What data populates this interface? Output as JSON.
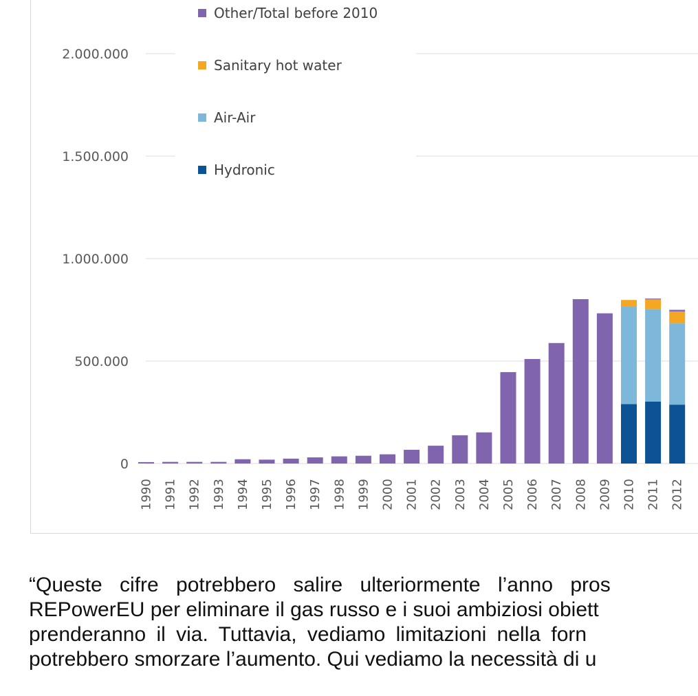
{
  "chart_data": {
    "type": "bar",
    "stacked": true,
    "categories": [
      "1990",
      "1991",
      "1992",
      "1993",
      "1994",
      "1995",
      "1996",
      "1997",
      "1998",
      "1999",
      "2000",
      "2001",
      "2002",
      "2003",
      "2004",
      "2005",
      "2006",
      "2007",
      "2008",
      "2009",
      "2010",
      "2011",
      "2012"
    ],
    "series": [
      {
        "name": "Hydronic",
        "color": "#0b5394",
        "values": [
          0,
          0,
          0,
          0,
          0,
          0,
          0,
          0,
          0,
          0,
          0,
          0,
          0,
          0,
          0,
          0,
          0,
          0,
          0,
          0,
          290000,
          302000,
          287000
        ]
      },
      {
        "name": "Air-Air",
        "color": "#7db7d9",
        "values": [
          0,
          0,
          0,
          0,
          0,
          0,
          0,
          0,
          0,
          0,
          0,
          0,
          0,
          0,
          0,
          0,
          0,
          0,
          0,
          0,
          475000,
          452000,
          397000
        ]
      },
      {
        "name": "Sanitary hot water",
        "color": "#f5a623",
        "values": [
          0,
          0,
          0,
          0,
          0,
          0,
          0,
          0,
          0,
          0,
          0,
          0,
          0,
          0,
          0,
          0,
          0,
          0,
          0,
          0,
          33000,
          47000,
          58000
        ]
      },
      {
        "name": "Other/Total before 2010",
        "color": "#8064ae",
        "values": [
          7000,
          8000,
          8000,
          8000,
          21000,
          19000,
          24000,
          30000,
          35000,
          38000,
          45000,
          67000,
          87000,
          138000,
          152000,
          446000,
          510000,
          588000,
          802000,
          733000,
          0,
          4000,
          8000
        ]
      }
    ],
    "legend_order": [
      "Other/Total before 2010",
      "Sanitary hot water",
      "Air-Air",
      "Hydronic"
    ],
    "y_ticks": [
      0,
      500000,
      1000000,
      1500000,
      2000000
    ],
    "y_tick_labels": [
      "0",
      "500.000",
      "1.000.000",
      "1.500.000",
      "2.000.000"
    ],
    "ylim": [
      0,
      2000000
    ],
    "title": "",
    "xlabel": "",
    "ylabel": "",
    "grid": true,
    "legend_position": "top-left"
  },
  "article": {
    "lines": [
      "“Queste cifre potrebbero salire ulteriormente l’anno pros",
      "REPowerEU per eliminare il gas russo e i suoi ambiziosi obiett",
      "prenderanno il via. Tuttavia, vediamo limitazioni nella forn",
      "potrebbero smorzare l’aumento. Qui vediamo la necessità di u"
    ]
  }
}
